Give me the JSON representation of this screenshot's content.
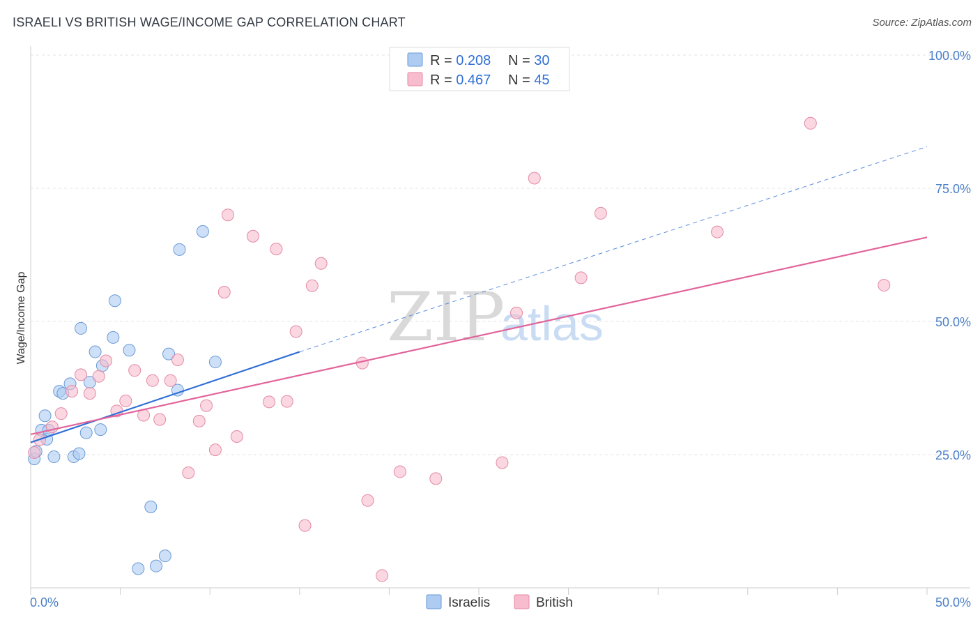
{
  "header": {
    "title": "ISRAELI VS BRITISH WAGE/INCOME GAP CORRELATION CHART",
    "source": "Source: ZipAtlas.com"
  },
  "watermark": {
    "zip": "ZIP",
    "atlas": "atlas"
  },
  "legend": {
    "rows": [
      {
        "r_label": "R = ",
        "r_value": "0.208",
        "n_label": "N = ",
        "n_value": "30",
        "color": "#aecbf2"
      },
      {
        "r_label": "R = ",
        "r_value": "0.467",
        "n_label": "N = ",
        "n_value": "45",
        "color": "#f7bccd"
      }
    ]
  },
  "bottom_legend": [
    {
      "label": "Israelis",
      "color": "#aecbf2"
    },
    {
      "label": "British",
      "color": "#f7bccd"
    }
  ],
  "chart_data": {
    "type": "scatter",
    "title": "ISRAELI VS BRITISH WAGE/INCOME GAP CORRELATION CHART",
    "xlabel": "",
    "ylabel": "Wage/Income Gap",
    "xlim": [
      0,
      50
    ],
    "ylim": [
      0,
      100
    ],
    "x_tick_labels": [
      "0.0%",
      "50.0%"
    ],
    "y_ticks": [
      25,
      50,
      75,
      100
    ],
    "y_tick_labels": [
      "25.0%",
      "50.0%",
      "75.0%",
      "100.0%"
    ],
    "grid": true,
    "legend_position": "top-center",
    "series": [
      {
        "name": "Israelis",
        "color": "#aecbf2",
        "stroke": "#6a9ad6",
        "trend_color": "#2f6fd6",
        "trend": {
          "x0": 0,
          "y0": 27.3,
          "x1": 15,
          "y1": 44.3,
          "dashed_to_x": 50,
          "dashed_to_y": 82.8
        },
        "points": [
          [
            0.2,
            24.2
          ],
          [
            0.6,
            29.6
          ],
          [
            0.8,
            32.3
          ],
          [
            0.9,
            27.9
          ],
          [
            1.0,
            29.6
          ],
          [
            1.3,
            24.6
          ],
          [
            1.6,
            36.9
          ],
          [
            1.8,
            36.5
          ],
          [
            2.2,
            38.3
          ],
          [
            2.4,
            24.6
          ],
          [
            2.7,
            25.2
          ],
          [
            2.8,
            48.7
          ],
          [
            3.1,
            29.1
          ],
          [
            3.3,
            38.6
          ],
          [
            3.6,
            44.3
          ],
          [
            3.9,
            29.7
          ],
          [
            4.0,
            41.7
          ],
          [
            4.6,
            47.0
          ],
          [
            4.7,
            53.9
          ],
          [
            5.5,
            44.6
          ],
          [
            6.0,
            3.6
          ],
          [
            6.7,
            15.2
          ],
          [
            7.0,
            4.1
          ],
          [
            7.5,
            6.0
          ],
          [
            7.7,
            43.9
          ],
          [
            8.2,
            37.1
          ],
          [
            8.3,
            63.5
          ],
          [
            9.6,
            66.9
          ],
          [
            10.3,
            42.4
          ],
          [
            0.3,
            25.6
          ]
        ]
      },
      {
        "name": "British",
        "color": "#f7bccd",
        "stroke": "#e48aa6",
        "trend_color": "#e2649a",
        "trend": {
          "x0": 0,
          "y0": 28.8,
          "x1": 50,
          "y1": 65.8
        },
        "points": [
          [
            0.2,
            25.4
          ],
          [
            0.5,
            27.8
          ],
          [
            1.2,
            30.2
          ],
          [
            1.7,
            32.7
          ],
          [
            2.3,
            36.9
          ],
          [
            2.8,
            40.0
          ],
          [
            3.3,
            36.5
          ],
          [
            3.8,
            39.7
          ],
          [
            4.2,
            42.6
          ],
          [
            4.8,
            33.2
          ],
          [
            5.3,
            35.1
          ],
          [
            5.8,
            40.8
          ],
          [
            6.3,
            32.4
          ],
          [
            6.8,
            38.9
          ],
          [
            7.2,
            31.6
          ],
          [
            7.8,
            38.9
          ],
          [
            8.2,
            42.8
          ],
          [
            8.8,
            21.6
          ],
          [
            9.4,
            31.3
          ],
          [
            9.8,
            34.2
          ],
          [
            10.3,
            25.9
          ],
          [
            10.8,
            55.5
          ],
          [
            11.0,
            70.0
          ],
          [
            11.5,
            28.4
          ],
          [
            12.4,
            66.0
          ],
          [
            13.3,
            34.9
          ],
          [
            13.7,
            63.6
          ],
          [
            14.3,
            35.0
          ],
          [
            14.8,
            48.1
          ],
          [
            15.3,
            11.7
          ],
          [
            15.7,
            56.7
          ],
          [
            16.2,
            60.9
          ],
          [
            18.5,
            42.2
          ],
          [
            18.8,
            16.4
          ],
          [
            19.6,
            2.3
          ],
          [
            20.6,
            21.8
          ],
          [
            22.6,
            20.5
          ],
          [
            26.3,
            23.5
          ],
          [
            27.1,
            51.6
          ],
          [
            28.1,
            76.9
          ],
          [
            30.7,
            58.2
          ],
          [
            31.8,
            70.3
          ],
          [
            38.3,
            66.8
          ],
          [
            43.5,
            87.2
          ],
          [
            47.6,
            56.8
          ]
        ]
      }
    ]
  }
}
